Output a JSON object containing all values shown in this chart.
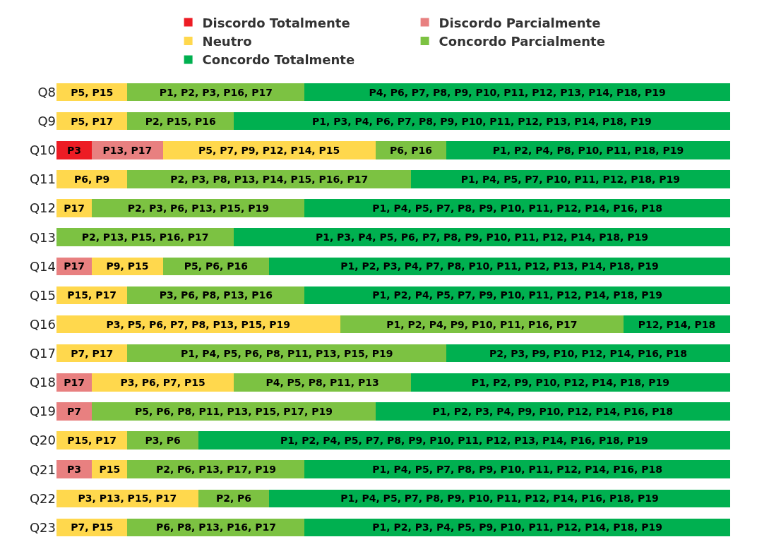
{
  "chart_data": {
    "type": "bar",
    "orientation": "horizontal",
    "stacked": true,
    "tick_labels": "y",
    "legend": "top",
    "categories": [
      "Q8",
      "Q9",
      "Q10",
      "Q11",
      "Q12",
      "Q13",
      "Q14",
      "Q15",
      "Q16",
      "Q17",
      "Q18",
      "Q19",
      "Q20",
      "Q21",
      "Q22",
      "Q23"
    ],
    "series": [
      {
        "name": "Discordo Totalmente",
        "color": "#ed1c24",
        "values": [
          null,
          null,
          1,
          null,
          null,
          null,
          null,
          null,
          null,
          null,
          null,
          null,
          null,
          null,
          null,
          null
        ],
        "value_labels": [
          null,
          null,
          "P3",
          null,
          null,
          null,
          null,
          null,
          null,
          null,
          null,
          null,
          null,
          null,
          null,
          null
        ]
      },
      {
        "name": "Discordo Parcialmente",
        "color": "#e88080",
        "values": [
          null,
          null,
          2,
          null,
          null,
          null,
          1,
          null,
          null,
          null,
          1,
          1,
          null,
          1,
          null,
          null
        ],
        "value_labels": [
          null,
          null,
          "P13, P17",
          null,
          null,
          null,
          "P17",
          null,
          null,
          null,
          "P17",
          "P7",
          null,
          "P3",
          null,
          null
        ]
      },
      {
        "name": "Neutro",
        "color": "#ffd84d",
        "values": [
          2,
          2,
          6,
          2,
          1,
          null,
          2,
          2,
          8,
          2,
          4,
          null,
          2,
          1,
          4,
          2
        ],
        "value_labels": [
          "P5, P15",
          "P5, P17",
          "P5, P7, P9, P12, P14, P15",
          "P6, P9",
          "P17",
          null,
          "P9, P15",
          "P15, P17",
          "P3, P5, P6, P7, P8, P13, P15, P19",
          "P7, P17",
          "P3, P6, P7, P15",
          null,
          "P15, P17",
          "P15",
          "P3, P13, P15, P17",
          "P7, P15"
        ]
      },
      {
        "name": "Concordo Parcialmente",
        "color": "#7cc242",
        "values": [
          5,
          3,
          2,
          8,
          6,
          5,
          3,
          5,
          8,
          9,
          5,
          8,
          2,
          5,
          2,
          5
        ],
        "value_labels": [
          "P1, P2, P3, P16, P17",
          "P2, P15, P16",
          "P6, P16",
          "P2, P3, P8, P13, P14, P15, P16, P17",
          "P2, P3, P6, P13, P15, P19",
          "P2, P13, P15, P16, P17",
          "P5, P6, P16",
          "P3, P6, P8, P13, P16",
          "P1, P2, P4, P9, P10, P11, P16, P17",
          "P1, P4, P5, P6, P8, P11, P13, P15, P19",
          "P4, P5, P8, P11, P13",
          "P5, P6, P8, P11, P13, P15, P17, P19",
          "P3, P6",
          "P2, P6, P13, P17, P19",
          "P2, P6",
          "P6, P8, P13, P16, P17"
        ]
      },
      {
        "name": "Concordo Totalmente",
        "color": "#00b050",
        "values": [
          12,
          14,
          8,
          9,
          12,
          14,
          13,
          12,
          3,
          8,
          9,
          10,
          15,
          12,
          13,
          12
        ],
        "value_labels": [
          "P4, P6, P7, P8, P9, P10, P11, P12, P13, P14, P18, P19",
          "P1, P3, P4, P6, P7, P8, P9, P10, P11, P12, P13, P14, P18, P19",
          "P1, P2, P4, P8, P10, P11, P18, P19",
          "P1, P4, P5, P7, P10, P11, P12, P18, P19",
          "P1, P4, P5, P7, P8, P9, P10, P11, P12, P14, P16, P18",
          "P1, P3, P4, P5, P6, P7, P8, P9, P10, P11, P12, P14, P18, P19",
          "P1, P2, P3, P4, P7, P8, P10, P11, P12, P13, P14, P18, P19",
          "P1, P2, P4, P5, P7, P9, P10, P11, P12, P14, P18, P19",
          "P12, P14, P18",
          "P2, P3, P9, P10, P12, P14, P16, P18",
          "P1, P2, P9, P10, P12, P14, P18, P19",
          "P1, P2, P3, P4, P9, P10, P12, P14, P16, P18",
          "P1, P2, P4, P5, P7, P8, P9, P10, P11, P12, P13, P14, P16, P18, P19",
          "P1, P4, P5, P7, P8, P9, P10, P11, P12, P14, P16, P18",
          "P1, P4, P5, P7, P8, P9, P10, P11, P12, P14, P16, P18, P19",
          "P1, P2, P3, P4, P5, P9, P10, P11, P12, P14, P18, P19"
        ]
      }
    ]
  }
}
